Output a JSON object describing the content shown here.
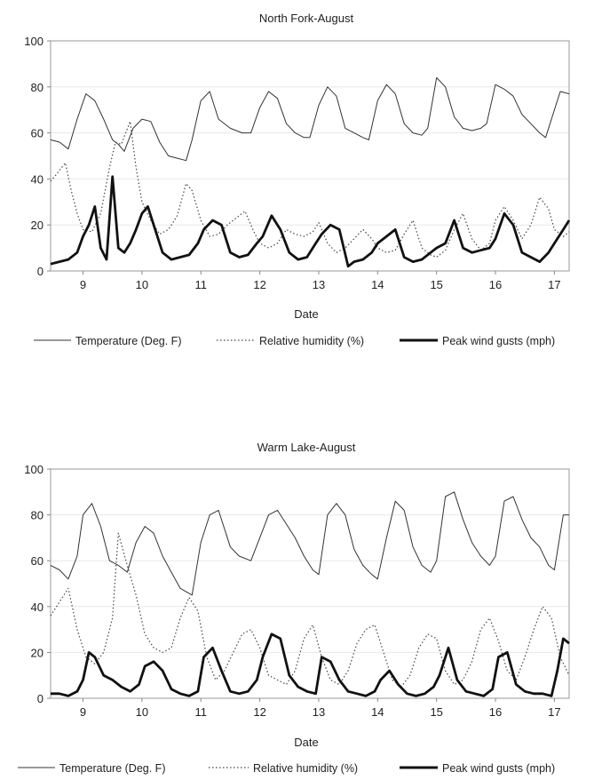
{
  "chart_data": [
    {
      "type": "line",
      "title": "North Fork-August",
      "xlabel": "Date",
      "ylabel": "",
      "ylim": [
        0,
        100
      ],
      "yticks": [
        0,
        20,
        40,
        60,
        80,
        100
      ],
      "xlim": [
        8.45,
        17.25
      ],
      "xticks": [
        9,
        10,
        11,
        12,
        13,
        14,
        15,
        16,
        17
      ],
      "grid": true,
      "legend": "bottom",
      "series": [
        {
          "name": "Temperature (Deg. F)",
          "style": "solid-thin",
          "color": "#333333",
          "x": [
            8.45,
            8.6,
            8.75,
            8.9,
            9.05,
            9.2,
            9.35,
            9.5,
            9.6,
            9.7,
            9.85,
            10.0,
            10.15,
            10.3,
            10.45,
            10.6,
            10.75,
            10.85,
            11.0,
            11.15,
            11.3,
            11.5,
            11.7,
            11.85,
            12.0,
            12.15,
            12.3,
            12.45,
            12.6,
            12.75,
            12.85,
            13.0,
            13.15,
            13.3,
            13.45,
            13.6,
            13.75,
            13.85,
            14.0,
            14.15,
            14.3,
            14.45,
            14.6,
            14.75,
            14.85,
            15.0,
            15.15,
            15.3,
            15.45,
            15.6,
            15.75,
            15.85,
            16.0,
            16.15,
            16.3,
            16.45,
            16.6,
            16.75,
            16.85,
            17.0,
            17.1,
            17.25
          ],
          "y": [
            57,
            56,
            53,
            66,
            77,
            74,
            66,
            57,
            55,
            52,
            62,
            66,
            65,
            56,
            50,
            49,
            48,
            57,
            74,
            78,
            66,
            62,
            60,
            60,
            71,
            78,
            75,
            64,
            60,
            58,
            58,
            72,
            80,
            76,
            62,
            60,
            58,
            57,
            74,
            81,
            77,
            64,
            60,
            59,
            62,
            84,
            80,
            67,
            62,
            61,
            62,
            64,
            81,
            79,
            76,
            68,
            64,
            60,
            58,
            70,
            78,
            77
          ]
        },
        {
          "name": "Relative humidity (%)",
          "style": "dotted",
          "color": "#444444",
          "x": [
            8.45,
            8.55,
            8.7,
            8.8,
            8.9,
            9.0,
            9.15,
            9.3,
            9.45,
            9.55,
            9.65,
            9.8,
            9.9,
            10.0,
            10.15,
            10.3,
            10.45,
            10.6,
            10.75,
            10.85,
            11.0,
            11.15,
            11.3,
            11.45,
            11.6,
            11.75,
            11.9,
            12.0,
            12.15,
            12.3,
            12.45,
            12.6,
            12.75,
            12.9,
            13.0,
            13.15,
            13.3,
            13.45,
            13.6,
            13.75,
            13.9,
            14.0,
            14.15,
            14.3,
            14.45,
            14.6,
            14.75,
            14.9,
            15.0,
            15.15,
            15.3,
            15.45,
            15.6,
            15.75,
            15.9,
            16.0,
            16.15,
            16.3,
            16.45,
            16.6,
            16.75,
            16.9,
            17.0,
            17.15,
            17.25
          ],
          "y": [
            39,
            42,
            47,
            35,
            25,
            18,
            17,
            25,
            45,
            56,
            55,
            65,
            45,
            30,
            22,
            16,
            18,
            24,
            38,
            35,
            22,
            15,
            16,
            20,
            23,
            26,
            17,
            12,
            10,
            12,
            18,
            16,
            15,
            17,
            21,
            12,
            8,
            10,
            14,
            18,
            14,
            10,
            8,
            9,
            16,
            22,
            10,
            7,
            6,
            9,
            18,
            25,
            14,
            9,
            12,
            22,
            28,
            22,
            14,
            20,
            32,
            27,
            18,
            15,
            17
          ]
        },
        {
          "name": "Peak wind gusts (mph)",
          "style": "solid-thick",
          "color": "#111111",
          "x": [
            8.45,
            8.6,
            8.75,
            8.9,
            9.0,
            9.1,
            9.2,
            9.3,
            9.4,
            9.5,
            9.6,
            9.7,
            9.8,
            9.9,
            10.0,
            10.1,
            10.2,
            10.35,
            10.5,
            10.65,
            10.8,
            10.95,
            11.05,
            11.2,
            11.35,
            11.5,
            11.65,
            11.8,
            11.95,
            12.05,
            12.2,
            12.35,
            12.5,
            12.65,
            12.8,
            12.95,
            13.05,
            13.2,
            13.35,
            13.5,
            13.6,
            13.75,
            13.9,
            14.0,
            14.15,
            14.3,
            14.45,
            14.6,
            14.75,
            14.9,
            15.0,
            15.15,
            15.3,
            15.45,
            15.6,
            15.75,
            15.9,
            16.0,
            16.15,
            16.3,
            16.45,
            16.6,
            16.75,
            16.9,
            17.0,
            17.15,
            17.25
          ],
          "y": [
            3,
            4,
            5,
            8,
            15,
            20,
            28,
            10,
            5,
            41,
            10,
            8,
            12,
            18,
            25,
            28,
            20,
            8,
            5,
            6,
            7,
            12,
            18,
            22,
            20,
            8,
            6,
            7,
            12,
            15,
            24,
            18,
            8,
            5,
            6,
            12,
            16,
            20,
            18,
            2,
            4,
            5,
            8,
            12,
            15,
            18,
            6,
            4,
            5,
            8,
            10,
            12,
            22,
            10,
            8,
            9,
            10,
            14,
            25,
            20,
            8,
            6,
            4,
            8,
            12,
            18,
            22
          ]
        }
      ]
    },
    {
      "type": "line",
      "title": "Warm Lake-August",
      "xlabel": "Date",
      "ylabel": "",
      "ylim": [
        0,
        100
      ],
      "yticks": [
        0,
        20,
        40,
        60,
        80,
        100
      ],
      "xlim": [
        8.45,
        17.25
      ],
      "xticks": [
        9,
        10,
        11,
        12,
        13,
        14,
        15,
        16,
        17
      ],
      "grid": true,
      "legend": "bottom",
      "series": [
        {
          "name": "Temperature (Deg. F)",
          "style": "solid-thin",
          "color": "#333333",
          "x": [
            8.45,
            8.6,
            8.75,
            8.9,
            9.0,
            9.15,
            9.3,
            9.45,
            9.6,
            9.75,
            9.9,
            10.05,
            10.2,
            10.35,
            10.5,
            10.65,
            10.85,
            11.0,
            11.15,
            11.3,
            11.5,
            11.65,
            11.85,
            12.0,
            12.15,
            12.3,
            12.45,
            12.6,
            12.75,
            12.9,
            13.0,
            13.15,
            13.3,
            13.45,
            13.6,
            13.75,
            13.9,
            14.0,
            14.15,
            14.3,
            14.45,
            14.6,
            14.75,
            14.9,
            15.0,
            15.15,
            15.3,
            15.45,
            15.6,
            15.75,
            15.9,
            16.0,
            16.15,
            16.3,
            16.45,
            16.6,
            16.75,
            16.9,
            17.0,
            17.15,
            17.25
          ],
          "y": [
            58,
            56,
            52,
            62,
            80,
            85,
            75,
            60,
            58,
            55,
            68,
            75,
            72,
            62,
            55,
            48,
            45,
            68,
            80,
            82,
            66,
            62,
            60,
            70,
            80,
            82,
            76,
            70,
            62,
            56,
            54,
            80,
            85,
            80,
            65,
            58,
            54,
            52,
            70,
            86,
            82,
            66,
            58,
            55,
            60,
            88,
            90,
            78,
            68,
            62,
            58,
            62,
            86,
            88,
            78,
            70,
            66,
            58,
            56,
            80,
            80
          ]
        },
        {
          "name": "Relative humidity (%)",
          "style": "dotted",
          "color": "#444444",
          "x": [
            8.45,
            8.6,
            8.75,
            8.9,
            9.05,
            9.2,
            9.35,
            9.5,
            9.6,
            9.75,
            9.9,
            10.05,
            10.2,
            10.35,
            10.5,
            10.65,
            10.8,
            10.95,
            11.1,
            11.25,
            11.4,
            11.55,
            11.7,
            11.85,
            12.0,
            12.15,
            12.3,
            12.45,
            12.6,
            12.75,
            12.9,
            13.05,
            13.2,
            13.35,
            13.5,
            13.65,
            13.8,
            13.95,
            14.1,
            14.25,
            14.4,
            14.55,
            14.7,
            14.85,
            15.0,
            15.15,
            15.3,
            15.45,
            15.6,
            15.75,
            15.9,
            16.05,
            16.2,
            16.35,
            16.5,
            16.65,
            16.8,
            16.95,
            17.1,
            17.25
          ],
          "y": [
            36,
            42,
            48,
            30,
            18,
            15,
            20,
            35,
            72,
            58,
            45,
            28,
            22,
            20,
            22,
            35,
            44,
            38,
            18,
            8,
            12,
            20,
            28,
            30,
            22,
            10,
            8,
            6,
            12,
            26,
            32,
            18,
            8,
            6,
            12,
            24,
            30,
            32,
            20,
            8,
            5,
            10,
            22,
            28,
            26,
            12,
            6,
            8,
            16,
            30,
            35,
            25,
            12,
            8,
            18,
            30,
            40,
            35,
            18,
            10
          ]
        },
        {
          "name": "Peak wind gusts (mph)",
          "style": "solid-thick",
          "color": "#111111",
          "x": [
            8.45,
            8.6,
            8.75,
            8.9,
            9.0,
            9.1,
            9.2,
            9.35,
            9.5,
            9.65,
            9.8,
            9.95,
            10.05,
            10.2,
            10.35,
            10.5,
            10.65,
            10.8,
            10.95,
            11.05,
            11.2,
            11.35,
            11.5,
            11.65,
            11.8,
            11.95,
            12.05,
            12.2,
            12.35,
            12.5,
            12.65,
            12.8,
            12.95,
            13.05,
            13.2,
            13.35,
            13.5,
            13.65,
            13.8,
            13.95,
            14.05,
            14.2,
            14.35,
            14.5,
            14.65,
            14.8,
            14.95,
            15.05,
            15.2,
            15.35,
            15.5,
            15.65,
            15.8,
            15.95,
            16.05,
            16.2,
            16.35,
            16.5,
            16.65,
            16.8,
            16.95,
            17.05,
            17.15,
            17.25
          ],
          "y": [
            2,
            2,
            1,
            3,
            8,
            20,
            18,
            10,
            8,
            5,
            3,
            6,
            14,
            16,
            12,
            4,
            2,
            1,
            3,
            18,
            22,
            12,
            3,
            2,
            3,
            8,
            18,
            28,
            26,
            10,
            5,
            3,
            2,
            18,
            16,
            8,
            3,
            2,
            1,
            3,
            8,
            12,
            6,
            2,
            1,
            2,
            5,
            10,
            22,
            8,
            3,
            2,
            1,
            4,
            18,
            20,
            6,
            3,
            2,
            2,
            1,
            12,
            26,
            24
          ]
        }
      ]
    }
  ]
}
